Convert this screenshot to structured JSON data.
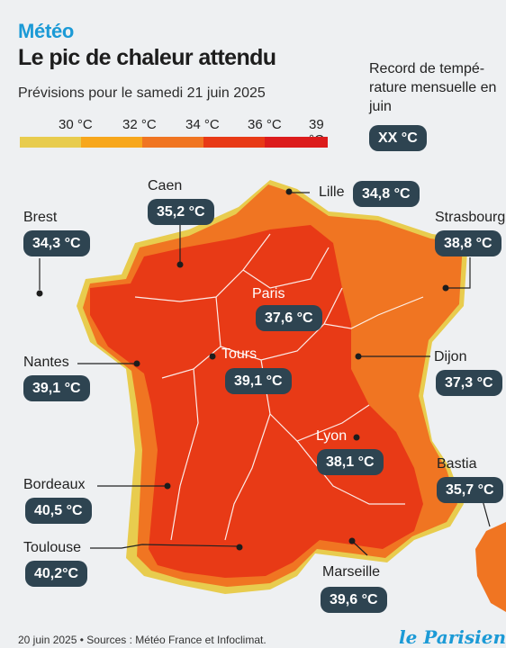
{
  "header": {
    "kicker": "Météo",
    "title": "Le pic de chaleur attendu",
    "subtitle": "Prévisions pour le samedi 21 juin 2025"
  },
  "legend": {
    "labels": [
      "30 °C",
      "32 °C",
      "34 °C",
      "36 °C",
      "39 °C"
    ],
    "colors": [
      "#e8cc4e",
      "#f7a71c",
      "#f07522",
      "#e83a16",
      "#dc1c1c"
    ]
  },
  "record_box": {
    "text": "Record de tempé-rature mensuelle en juin",
    "value": "XX °C"
  },
  "cities": [
    {
      "name": "Lille",
      "temp": "34,8 °C",
      "record": false
    },
    {
      "name": "Caen",
      "temp": "35,2 °C",
      "record": false
    },
    {
      "name": "Brest",
      "temp": "34,3 °C",
      "record": false
    },
    {
      "name": "Strasbourg",
      "temp": "38,8 °C",
      "record": false
    },
    {
      "name": "Paris",
      "temp": "37,6 °C",
      "record": false
    },
    {
      "name": "Nantes",
      "temp": "39,1 °C",
      "record": false
    },
    {
      "name": "Tours",
      "temp": "39,1 °C",
      "record": false
    },
    {
      "name": "Dijon",
      "temp": "37,3 °C",
      "record": false
    },
    {
      "name": "Lyon",
      "temp": "38,1 °C",
      "record": false
    },
    {
      "name": "Bastia",
      "temp": "35,7 °C",
      "record": false
    },
    {
      "name": "Bordeaux",
      "temp": "40,5 °C",
      "record": false
    },
    {
      "name": "Toulouse",
      "temp": "40,2°C",
      "record": false
    },
    {
      "name": "Marseille",
      "temp": "39,6 °C",
      "record": false
    }
  ],
  "footer": {
    "source": "20 juin 2025 • Sources : Météo France et Infoclimat.",
    "logo": "le Parisien"
  }
}
